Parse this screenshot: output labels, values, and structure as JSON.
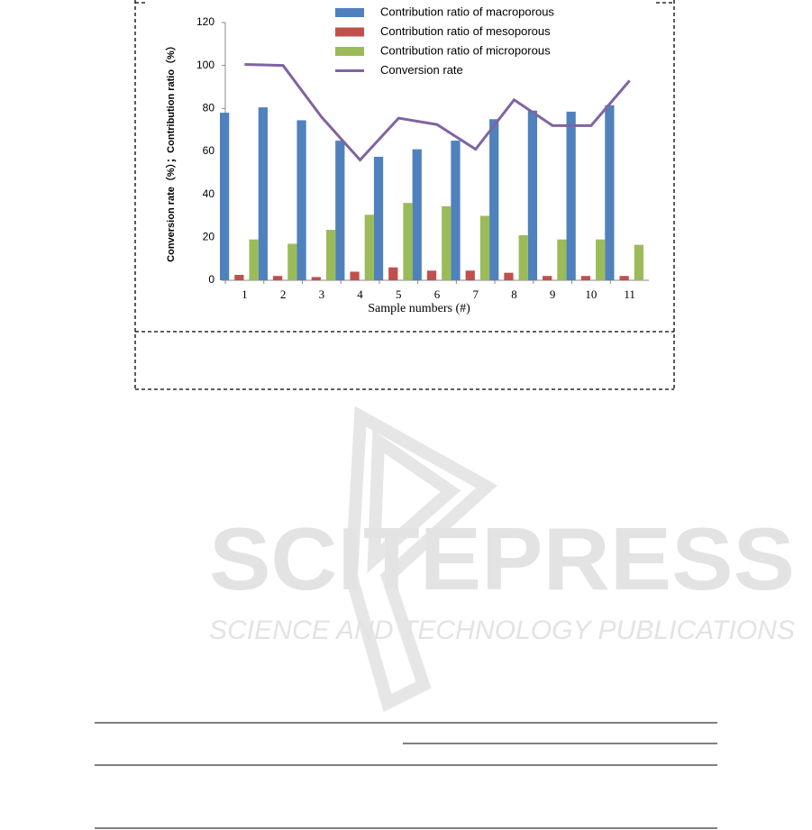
{
  "chart_data": {
    "type": "bar",
    "xlabel": "Sample numbers (#)",
    "ylabel": "Conversion rate（%）；Contribution ratio（%）",
    "categories": [
      "1",
      "2",
      "3",
      "4",
      "5",
      "6",
      "7",
      "8",
      "9",
      "10",
      "11"
    ],
    "series": [
      {
        "name": "Contribution ratio of macroporous",
        "type": "bar",
        "color": "#4f81bd",
        "values": [
          78,
          80.5,
          74.5,
          65,
          57.5,
          61,
          65,
          75,
          79,
          78.5,
          81.5
        ]
      },
      {
        "name": "Contribution ratio of mesoporous",
        "type": "bar",
        "color": "#c0504d",
        "values": [
          2.5,
          2,
          1.5,
          4,
          6,
          4.5,
          4.5,
          3.5,
          2,
          2,
          2
        ]
      },
      {
        "name": "Contribution ratio of microporous",
        "type": "bar",
        "color": "#9bbb59",
        "values": [
          19,
          17,
          23.5,
          30.5,
          36,
          34.5,
          30,
          21,
          19,
          19,
          16.5
        ]
      },
      {
        "name": "Conversion rate",
        "type": "line",
        "color": "#8064a2",
        "values": [
          100.5,
          100,
          76,
          56,
          75.5,
          72.5,
          61,
          84,
          72,
          72,
          93
        ]
      }
    ],
    "ylim": [
      0,
      120
    ],
    "yticks": [
      0,
      20,
      40,
      60,
      80,
      100,
      120
    ],
    "grid": false,
    "legend": "top"
  },
  "watermark": {
    "title": "SCITEPRESS",
    "subtitle": "SCIENCE AND TECHNOLOGY PUBLICATIONS"
  }
}
